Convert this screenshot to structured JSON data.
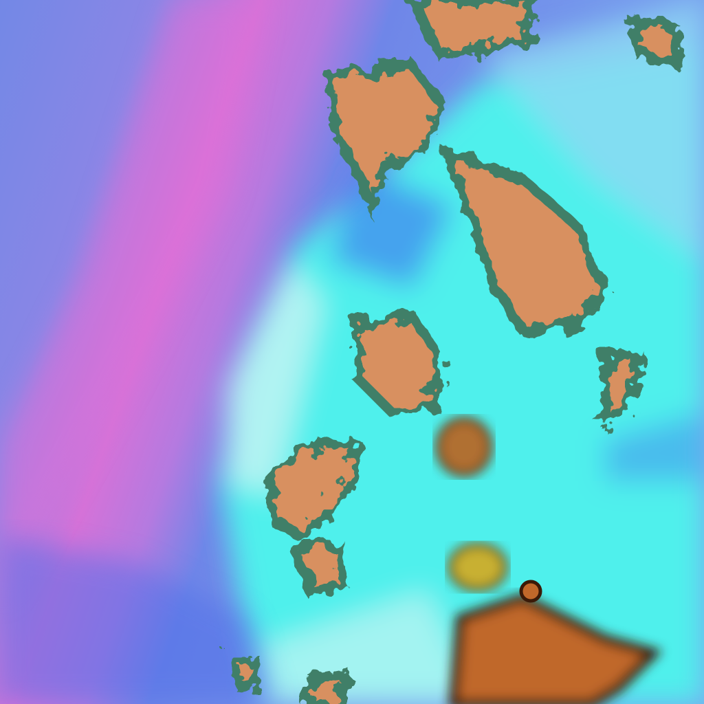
{
  "image": {
    "kind": "false-color satellite imagery",
    "palette": {
      "clear_sky_blue": "#6f86e8",
      "haze_magenta": "#e070d8",
      "low_cloud_cyan": "#4ff0ec",
      "pale_cloud": "#c8f4f4",
      "deep_blue": "#3f6ff0",
      "high_cloud_orange": "#d89060",
      "cloud_edge_green": "#3f7f68",
      "dark_core": "#5a2a10",
      "yellow_core": "#c8b030"
    }
  }
}
